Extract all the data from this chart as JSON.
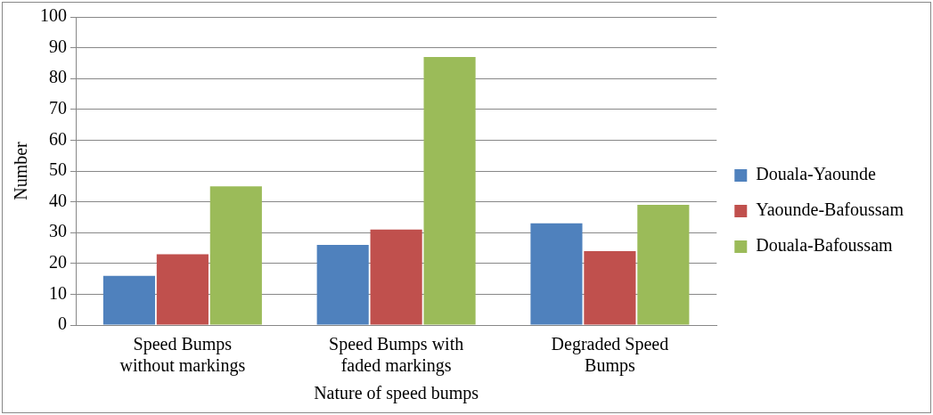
{
  "chart_data": {
    "type": "bar",
    "xlabel": "Nature of speed bumps",
    "ylabel": "Number",
    "categories": [
      "Speed Bumps without markings",
      "Speed Bumps with faded markings",
      "Degraded Speed Bumps"
    ],
    "series": [
      {
        "name": "Douala-Yaounde",
        "color": "#4f81bd",
        "values": [
          16,
          26,
          33
        ]
      },
      {
        "name": "Yaounde-Bafoussam",
        "color": "#c0504d",
        "values": [
          23,
          31,
          24
        ]
      },
      {
        "name": "Douala-Bafoussam",
        "color": "#9bbb59",
        "values": [
          45,
          87,
          39
        ]
      }
    ],
    "ylim": [
      0,
      100
    ],
    "yticks": [
      0,
      10,
      20,
      30,
      40,
      50,
      60,
      70,
      80,
      90,
      100
    ],
    "grid": "y",
    "legend": "right"
  }
}
